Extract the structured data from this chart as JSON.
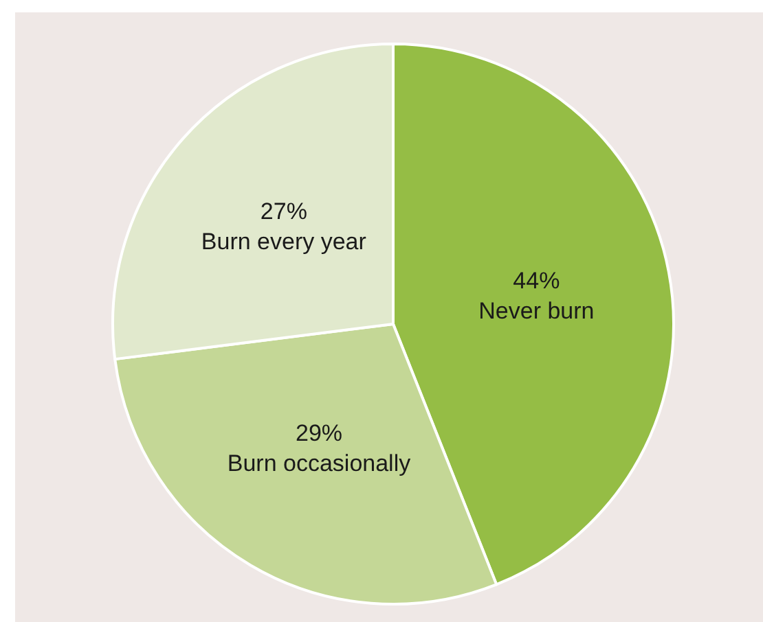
{
  "chart_data": {
    "type": "pie",
    "categories": [
      "Never burn",
      "Burn occasionally",
      "Burn every year"
    ],
    "values": [
      44,
      29,
      27
    ],
    "colors": [
      "#95bd45",
      "#c4d796",
      "#e1e9cd"
    ],
    "value_labels": [
      "44%",
      "29%",
      "27%"
    ]
  }
}
